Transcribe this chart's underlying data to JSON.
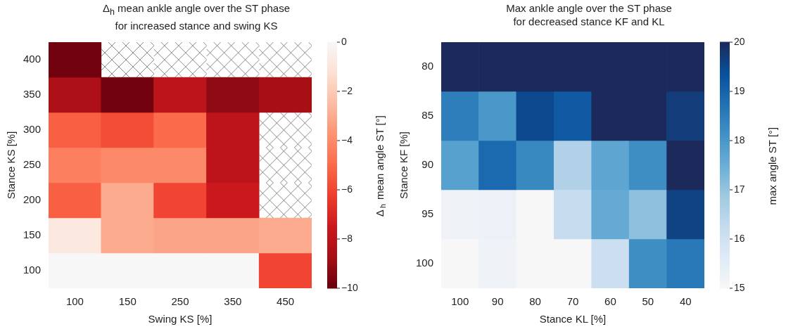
{
  "chart_data": [
    {
      "type": "heatmap",
      "title": "Δ$_{h}$ mean ankle angle over the ST phase\nfor increased stance and swing KS",
      "xlabel": "Swing KS [%]",
      "ylabel": "Stance KS [%]",
      "clabel": "Δ$_{h}$ mean angle ST [°]",
      "categories": [
        "100",
        "150",
        "250",
        "350",
        "450"
      ],
      "y_categories": [
        "400",
        "350",
        "300",
        "250",
        "200",
        "150",
        "100"
      ],
      "cells": [
        [
          -9.8,
          null,
          null,
          null,
          null
        ],
        [
          -8.5,
          -9.8,
          -8,
          -9.2,
          -8.7
        ],
        [
          -5.3,
          -5.8,
          -5,
          -8,
          null
        ],
        [
          -4.3,
          -4,
          -4,
          -8,
          null
        ],
        [
          -5.3,
          -3,
          -6,
          -7.5,
          null
        ],
        [
          -0.8,
          -3,
          -3.2,
          -3.2,
          -3
        ],
        [
          0,
          0,
          0,
          0,
          -6
        ]
      ],
      "clim": [
        -10,
        0
      ],
      "cticks": [
        {
          "value": -10,
          "label": "−10"
        },
        {
          "value": -8,
          "label": "−8"
        },
        {
          "value": -6,
          "label": "−6"
        },
        {
          "value": -4,
          "label": "−4"
        },
        {
          "value": -2,
          "label": "−2"
        },
        0
      ],
      "colors": [
        "#67000d",
        "#a50f15",
        "#cb181d",
        "#ef3b2c",
        "#fb6a4a",
        "#fc9272",
        "#fcbba1",
        "#fee0d2",
        "#f7f7f7"
      ]
    },
    {
      "type": "heatmap",
      "title": "Max ankle angle over the ST phase\nfor decreased stance KF and KL",
      "xlabel": "Stance KL [%]",
      "ylabel": "Stance KF [%]",
      "clabel": "max angle ST [°]",
      "categories": [
        "100",
        "90",
        "80",
        "70",
        "60",
        "50",
        "40"
      ],
      "y_categories": [
        "80",
        "85",
        "90",
        "95",
        "100"
      ],
      "cells": [
        [
          20,
          20,
          20,
          20,
          20,
          20,
          20
        ],
        [
          18.5,
          18,
          19.5,
          19.2,
          20,
          20,
          19.7
        ],
        [
          17.8,
          18.9,
          18.3,
          16.6,
          17.7,
          18.2,
          20
        ],
        [
          15.2,
          15.3,
          15,
          16.2,
          17.6,
          17.1,
          19.6
        ],
        [
          15,
          15.2,
          15,
          15,
          16.1,
          18.2,
          18.6
        ]
      ],
      "clim": [
        15,
        20
      ],
      "cticks": [
        15,
        16,
        17,
        18,
        19,
        20
      ],
      "colors": [
        "#f7f7f7",
        "#deebf7",
        "#c6dbef",
        "#9ecae1",
        "#6baed6",
        "#4292c6",
        "#2171b5",
        "#08519c",
        "#1b2a5a"
      ]
    }
  ]
}
